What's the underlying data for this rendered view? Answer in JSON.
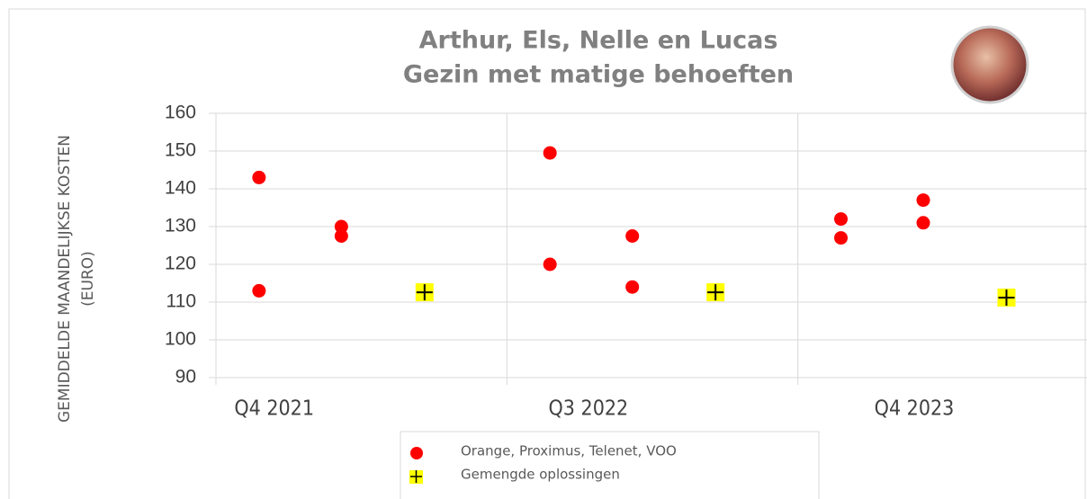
{
  "chart_data": {
    "type": "scatter",
    "title": "Arthur, Els, Nelle en Lucas",
    "subtitle": "Gezin met matige behoeften",
    "y_label": [
      "GEMIDDELDE MAANDELIJKSE KOSTEN",
      "(EURO)"
    ],
    "categories": [
      "Q4 2021",
      "Q3 2022",
      "Q4 2023"
    ],
    "series": [
      {
        "name": "Orange, Proximus, Telenet, VOO",
        "color": "#ff0000",
        "marker": "circle",
        "values": [
          [
            143,
            113,
            130,
            127.5
          ],
          [
            149.5,
            120,
            127.5,
            114
          ],
          [
            132,
            127,
            137,
            131
          ]
        ]
      },
      {
        "name": "Gemengde oplossingen",
        "color": "#ffff00",
        "marker": "plus",
        "values": [
          [
            112.6
          ],
          [
            112.6
          ],
          [
            111.2
          ]
        ]
      }
    ],
    "ylim": [
      90,
      160
    ],
    "yticks": [
      90,
      100,
      110,
      120,
      130,
      140,
      150,
      160
    ],
    "grid": true
  }
}
